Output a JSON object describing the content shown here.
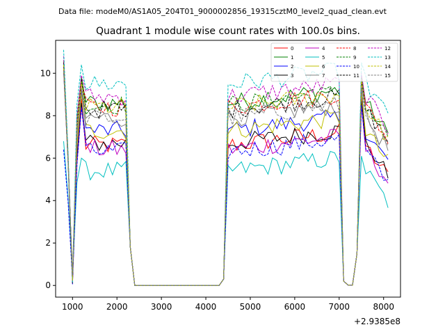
{
  "chart_data": {
    "type": "line",
    "suptitle": "Data file: modeM0/AS1A05_204T01_9000002856_19315cztM0_level2_quad_clean.evt",
    "title": "Quadrant 1 module wise count rates with 100.0s bins.",
    "xlabel": "",
    "ylabel": "",
    "x_offset_label": "+2.9385e8",
    "xlim": [
      620,
      8380
    ],
    "ylim": [
      -0.55,
      11.55
    ],
    "x_ticks": [
      1000,
      2000,
      3000,
      4000,
      5000,
      6000,
      7000,
      8000
    ],
    "x_tick_labels": [
      "1000",
      "2000",
      "3000",
      "4000",
      "5000",
      "6000",
      "7000",
      "8000"
    ],
    "y_ticks": [
      0,
      2,
      4,
      6,
      8,
      10
    ],
    "y_tick_labels": [
      "0",
      "2",
      "4",
      "6",
      "8",
      "10"
    ],
    "grid": false,
    "legend_position": "top-right",
    "legend_columns": 4,
    "x_segments": [
      {
        "start": 800,
        "end": 1000
      },
      {
        "start": 1000,
        "end": 2200
      },
      {
        "start": 2200,
        "end": 2400
      },
      {
        "start": 2400,
        "end": 4300
      },
      {
        "start": 4300,
        "end": 4500
      },
      {
        "start": 4500,
        "end": 7000
      },
      {
        "start": 7000,
        "end": 7200
      },
      {
        "start": 7200,
        "end": 7400
      },
      {
        "start": 7400,
        "end": 7600
      },
      {
        "start": 7600,
        "end": 8100
      }
    ],
    "x_step": 100,
    "series": [
      {
        "name": "0",
        "color": "#ff0000",
        "dash": "solid",
        "level": 6.6,
        "high1": 8.8,
        "sample_values_x": [
          800,
          1000,
          1200,
          2200,
          2400,
          4300,
          4500,
          7000,
          7300,
          7500,
          8100
        ],
        "sample_values_y": [
          10.3,
          0.3,
          7.6,
          6.6,
          0.0,
          0.0,
          6.9,
          7.6,
          0.0,
          9.0,
          5.8
        ]
      },
      {
        "name": "1",
        "color": "#008000",
        "dash": "solid",
        "level": 8.6,
        "high1": 9.8,
        "sample_values_x": [
          800,
          1000,
          1200,
          2200,
          2400,
          4300,
          4500,
          7000,
          7300,
          7500,
          8100
        ],
        "sample_values_y": [
          10.5,
          0.3,
          9.6,
          8.7,
          0.0,
          0.0,
          8.5,
          9.4,
          0.0,
          10.0,
          6.8
        ]
      },
      {
        "name": "2",
        "color": "#0000ff",
        "dash": "solid",
        "level": 7.3,
        "high1": 9.2,
        "sample_values_x": [
          800,
          1000,
          1200,
          2200,
          2400,
          4300,
          4500,
          7000,
          7300,
          7500,
          8100
        ],
        "sample_values_y": [
          10.1,
          0.3,
          7.6,
          7.8,
          0.0,
          0.0,
          7.1,
          8.1,
          0.0,
          8.9,
          5.8
        ]
      },
      {
        "name": "3",
        "color": "#000000",
        "dash": "solid",
        "level": 6.7,
        "high1": 8.6,
        "sample_values_x": [
          800,
          1000,
          1200,
          2200,
          2400,
          4300,
          4500,
          7000,
          7300,
          7500,
          8100
        ],
        "sample_values_y": [
          10.4,
          0.3,
          7.1,
          6.9,
          0.0,
          0.0,
          7.1,
          7.5,
          0.0,
          8.9,
          6.0
        ]
      },
      {
        "name": "4",
        "color": "#bf00bf",
        "dash": "solid",
        "level": 6.4,
        "high1": 8.4,
        "sample_values_x": [
          800,
          1000,
          1200,
          2200,
          2400,
          4300,
          4500,
          7000,
          7300,
          7500,
          8100
        ],
        "sample_values_y": [
          10.2,
          0.3,
          7.0,
          6.3,
          0.0,
          0.0,
          6.4,
          7.1,
          0.0,
          8.5,
          5.3
        ]
      },
      {
        "name": "5",
        "color": "#00bfbf",
        "dash": "solid",
        "level": 5.4,
        "high1": 6.0,
        "sample_values_x": [
          800,
          1000,
          1200,
          2200,
          2400,
          4300,
          4500,
          7000,
          7300,
          7500,
          8100
        ],
        "sample_values_y": [
          6.8,
          0.2,
          6.0,
          5.5,
          0.0,
          0.0,
          5.4,
          6.3,
          0.0,
          7.9,
          4.1
        ]
      },
      {
        "name": "6",
        "color": "#bfbf00",
        "dash": "solid",
        "level": 7.3,
        "high1": 9.0,
        "sample_values_x": [
          800,
          1000,
          1200,
          2200,
          2400,
          4300,
          4500,
          7000,
          7300,
          7500,
          8100
        ],
        "sample_values_y": [
          10.2,
          0.3,
          8.4,
          7.6,
          0.0,
          0.0,
          9.8,
          9.4,
          0.0,
          10.2,
          6.6
        ]
      },
      {
        "name": "7",
        "color": "#808080",
        "dash": "solid",
        "level": 7.9,
        "high1": 9.3,
        "sample_values_x": [
          800,
          1000,
          1200,
          2200,
          2400,
          4300,
          4500,
          7000,
          7300,
          7500,
          8100
        ],
        "sample_values_y": [
          10.3,
          0.3,
          8.9,
          7.9,
          0.0,
          0.0,
          8.7,
          9.2,
          0.0,
          9.7,
          7.0
        ]
      },
      {
        "name": "8",
        "color": "#ff0000",
        "dash": "dashed",
        "level": 8.4,
        "high1": 9.5,
        "sample_values_x": [
          800,
          1000,
          1200,
          2200,
          2400,
          4300,
          4500,
          7000,
          7300,
          7500,
          8100
        ],
        "sample_values_y": [
          10.6,
          0.3,
          9.4,
          8.6,
          0.0,
          0.0,
          7.8,
          8.5,
          0.0,
          10.0,
          6.9
        ]
      },
      {
        "name": "9",
        "color": "#008000",
        "dash": "dashed",
        "level": 8.5,
        "high1": 9.6,
        "sample_values_x": [
          800,
          1000,
          1200,
          2200,
          2400,
          4300,
          4500,
          7000,
          7300,
          7500,
          8100
        ],
        "sample_values_y": [
          10.5,
          0.3,
          9.2,
          8.8,
          0.0,
          0.0,
          8.4,
          9.0,
          0.0,
          10.1,
          6.9
        ]
      },
      {
        "name": "10",
        "color": "#0000ff",
        "dash": "dashed",
        "level": 6.3,
        "high1": 8.4,
        "sample_values_x": [
          800,
          1000,
          1200,
          2200,
          2400,
          4300,
          4500,
          7000,
          7300,
          7500,
          8100
        ],
        "sample_values_y": [
          6.4,
          0.2,
          6.6,
          6.4,
          0.0,
          0.0,
          6.9,
          7.8,
          0.0,
          9.4,
          4.6
        ]
      },
      {
        "name": "11",
        "color": "#000000",
        "dash": "dashed",
        "level": 8.3,
        "high1": 9.7,
        "sample_values_x": [
          800,
          1000,
          1200,
          2200,
          2400,
          4300,
          4500,
          7000,
          7300,
          7500,
          8100
        ],
        "sample_values_y": [
          10.5,
          0.3,
          9.2,
          8.4,
          0.0,
          0.0,
          8.9,
          9.6,
          0.0,
          10.3,
          7.1
        ]
      },
      {
        "name": "12",
        "color": "#bf00bf",
        "dash": "dashed",
        "level": 8.9,
        "high1": 9.9,
        "sample_values_x": [
          800,
          1000,
          1200,
          2200,
          2400,
          4300,
          4500,
          7000,
          7300,
          7500,
          8100
        ],
        "sample_values_y": [
          10.8,
          0.3,
          9.8,
          9.2,
          0.0,
          0.0,
          9.1,
          9.9,
          0.0,
          10.4,
          7.6
        ]
      },
      {
        "name": "13",
        "color": "#00bfbf",
        "dash": "dashed",
        "level": 9.5,
        "high1": 10.4,
        "sample_values_x": [
          800,
          1000,
          1200,
          2200,
          2400,
          4300,
          4500,
          7000,
          7300,
          7500,
          8100
        ],
        "sample_values_y": [
          11.1,
          0.3,
          10.3,
          9.8,
          0.0,
          0.0,
          9.6,
          10.3,
          0.0,
          10.9,
          7.8
        ]
      },
      {
        "name": "14",
        "color": "#bfbf00",
        "dash": "dashed",
        "level": 8.4,
        "high1": 9.6,
        "sample_values_x": [
          800,
          1000,
          1200,
          2200,
          2400,
          4300,
          4500,
          7000,
          7300,
          7500,
          8100
        ],
        "sample_values_y": [
          10.4,
          0.3,
          9.2,
          8.5,
          0.0,
          0.0,
          8.7,
          9.4,
          0.0,
          10.1,
          7.2
        ]
      },
      {
        "name": "15",
        "color": "#808080",
        "dash": "dashed",
        "level": 7.9,
        "high1": 9.1,
        "sample_values_x": [
          800,
          1000,
          1200,
          2200,
          2400,
          4300,
          4500,
          7000,
          7300,
          7500,
          8100
        ],
        "sample_values_y": [
          10.1,
          0.3,
          8.9,
          8.0,
          0.0,
          0.0,
          8.2,
          8.8,
          0.0,
          9.8,
          6.9
        ]
      }
    ]
  }
}
